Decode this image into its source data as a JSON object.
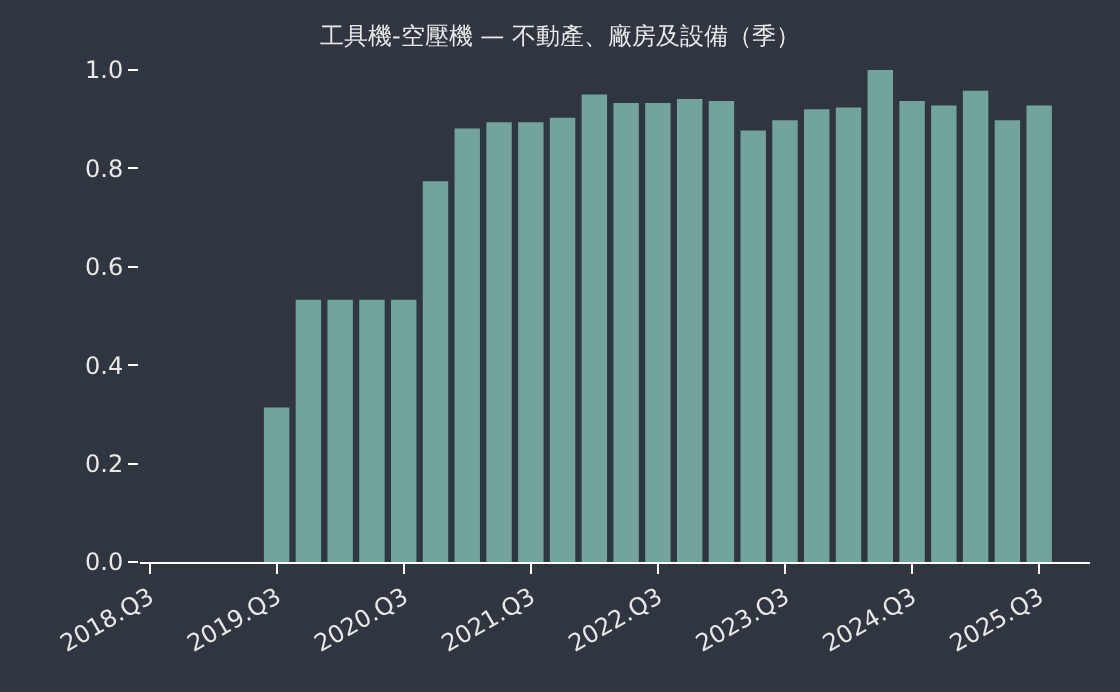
{
  "chart_data": {
    "type": "bar",
    "title": "工具機-空壓機 — 不動產、廠房及設備（季）",
    "categories": [
      "2018.Q3",
      null,
      null,
      null,
      "2019.Q3",
      null,
      null,
      null,
      "2020.Q3",
      null,
      null,
      null,
      "2021.Q3",
      null,
      null,
      null,
      "2022.Q3",
      null,
      null,
      null,
      "2023.Q3",
      null,
      null,
      null,
      "2024.Q3",
      null,
      null,
      null,
      "2025.Q3"
    ],
    "values": [
      null,
      null,
      null,
      null,
      0.314,
      0.533,
      0.533,
      0.533,
      0.533,
      0.774,
      0.881,
      0.894,
      0.894,
      0.903,
      0.95,
      0.933,
      0.933,
      0.941,
      0.937,
      0.877,
      0.898,
      0.92,
      0.924,
      1.0,
      0.937,
      0.928,
      0.958,
      0.898,
      0.928
    ],
    "color": "#73a39d",
    "ylim": [
      0,
      1
    ],
    "yticks": [
      {
        "value": 0,
        "label": "0.0"
      },
      {
        "value": 0.2,
        "label": "0.2"
      },
      {
        "value": 0.4,
        "label": "0.4"
      },
      {
        "value": 0.6,
        "label": "0.6"
      },
      {
        "value": 0.8,
        "label": "0.8"
      },
      {
        "value": 1,
        "label": "1.0"
      }
    ]
  }
}
